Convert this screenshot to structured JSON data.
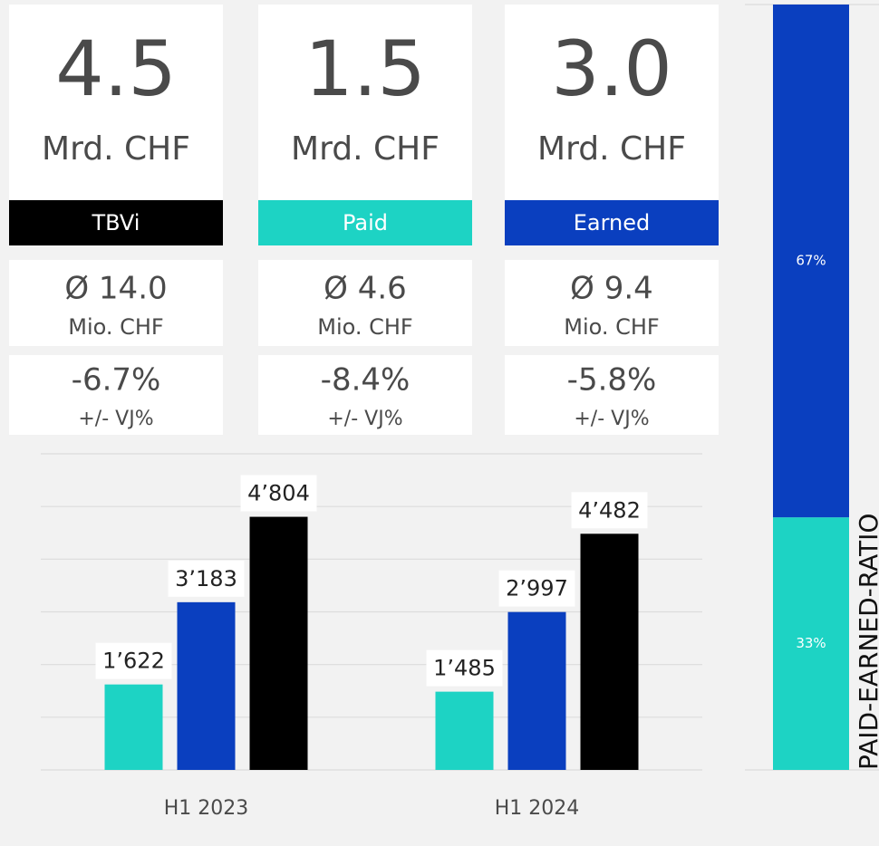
{
  "cards": [
    {
      "value": "4.5",
      "unit": "Mrd. CHF",
      "label": "TBVi",
      "color": "#000000",
      "average": "Ø 14.0",
      "average_unit": "Mio. CHF",
      "change": "-6.7%",
      "change_label": "+/- VJ%"
    },
    {
      "value": "1.5",
      "unit": "Mrd. CHF",
      "label": "Paid",
      "color": "#1dd3c4",
      "average": "Ø 4.6",
      "average_unit": "Mio. CHF",
      "change": "-8.4%",
      "change_label": "+/- VJ%"
    },
    {
      "value": "3.0",
      "unit": "Mrd. CHF",
      "label": "Earned",
      "color": "#0a3fbf",
      "average": "Ø 9.4",
      "average_unit": "Mio. CHF",
      "change": "-5.8%",
      "change_label": "+/- VJ%"
    }
  ],
  "chart_data": [
    {
      "type": "bar",
      "categories": [
        "H1 2023",
        "H1 2024"
      ],
      "series": [
        {
          "color": "#1dd3c4",
          "values": [
            1622,
            1485
          ],
          "value_labels": [
            "1’622",
            "1’485"
          ]
        },
        {
          "color": "#0a3fbf",
          "values": [
            3183,
            2997
          ],
          "value_labels": [
            "3’183",
            "2’997"
          ]
        },
        {
          "color": "#000000",
          "values": [
            4804,
            4482
          ],
          "value_labels": [
            "4’804",
            "4’482"
          ]
        }
      ],
      "ylim": [
        0,
        6000
      ],
      "yticks": [
        0,
        1000,
        2000,
        3000,
        4000,
        5000,
        6000
      ],
      "grid": true
    },
    {
      "type": "stacked_bar",
      "title": "PAID-EARNED-RATIO",
      "series": [
        {
          "color": "#1dd3c4",
          "values": [
            33
          ],
          "value_labels": [
            "33%"
          ]
        },
        {
          "color": "#0a3fbf",
          "values": [
            67
          ],
          "value_labels": [
            "67%"
          ]
        }
      ],
      "ylim": [
        0,
        100
      ]
    }
  ]
}
